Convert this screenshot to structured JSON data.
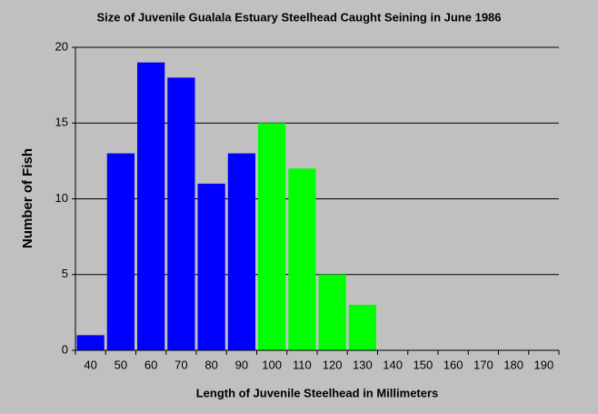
{
  "chart_data": {
    "type": "bar",
    "title": "Size of Juvenile Gualala Estuary Steelhead Caught Seining in June 1986",
    "x_label": "Length of Juvenile Steelhead in Millimeters",
    "y_label": "Number of Fish",
    "categories": [
      "40",
      "50",
      "60",
      "70",
      "80",
      "90",
      "100",
      "110",
      "120",
      "130",
      "140",
      "150",
      "160",
      "170",
      "180",
      "190"
    ],
    "values": [
      1,
      13,
      19,
      18,
      11,
      13,
      15,
      12,
      5,
      3,
      0,
      0,
      0,
      0,
      0,
      0
    ],
    "colors": [
      "#0000ff",
      "#0000ff",
      "#0000ff",
      "#0000ff",
      "#0000ff",
      "#0000ff",
      "#00ff00",
      "#00ff00",
      "#00ff00",
      "#00ff00",
      "#00ff00",
      "#00ff00",
      "#00ff00",
      "#00ff00",
      "#00ff00",
      "#00ff00"
    ],
    "ylim": [
      0,
      20
    ],
    "yticks": [
      0,
      5,
      10,
      15,
      20
    ],
    "grid": true
  }
}
